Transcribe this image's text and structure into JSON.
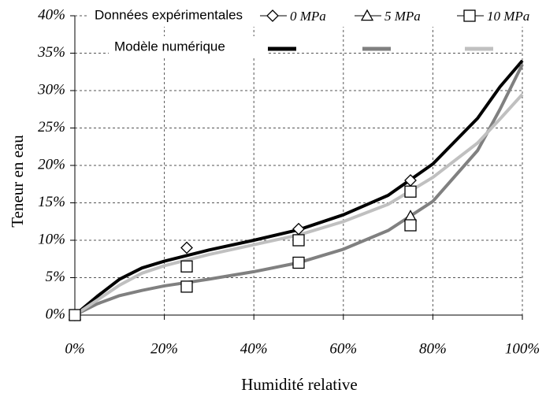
{
  "chart_data": {
    "type": "line",
    "x_label": "Humidité relative",
    "y_label": "Teneur en eau",
    "legend_titles": [
      "Données expérimentales",
      "Modèle numérique"
    ],
    "xlim": [
      0,
      100
    ],
    "xticks": [
      {
        "value": 0,
        "label": "0%"
      },
      {
        "value": 20,
        "label": "20%"
      },
      {
        "value": 40,
        "label": "40%"
      },
      {
        "value": 60,
        "label": "60%"
      },
      {
        "value": 80,
        "label": "80%"
      },
      {
        "value": 100,
        "label": "100%"
      }
    ],
    "ylim": [
      0,
      40
    ],
    "yticks": [
      {
        "value": 0,
        "label": "0%"
      },
      {
        "value": 5,
        "label": "5%"
      },
      {
        "value": 10,
        "label": "10%"
      },
      {
        "value": 15,
        "label": "15%"
      },
      {
        "value": 20,
        "label": "20%"
      },
      {
        "value": 25,
        "label": "25%"
      },
      {
        "value": 30,
        "label": "30%"
      },
      {
        "value": 35,
        "label": "35%"
      },
      {
        "value": 40,
        "label": "40%"
      }
    ],
    "grid": true,
    "series": [
      {
        "name": "0 MPa",
        "marker": "diamond",
        "x": [
          0,
          25,
          50,
          75
        ],
        "values": [
          0,
          9,
          11.5,
          18
        ]
      },
      {
        "name": "5 MPa",
        "marker": "triangle",
        "x": [
          0,
          75
        ],
        "values": [
          0,
          13.2
        ]
      },
      {
        "name": "10 MPa",
        "marker": "square",
        "x": [
          0,
          25,
          25,
          50,
          50,
          75,
          75
        ],
        "values": [
          0,
          6.5,
          3.8,
          10,
          7,
          16.5,
          12
        ]
      },
      {
        "color": "#000000",
        "x": [
          0,
          5,
          10,
          15,
          20,
          30,
          40,
          50,
          60,
          70,
          80,
          90,
          95,
          100
        ],
        "values": [
          0,
          2.5,
          4.8,
          6.3,
          7.2,
          8.7,
          10,
          11.4,
          13.4,
          16,
          20.2,
          26.3,
          30.5,
          34
        ]
      },
      {
        "color": "#808080",
        "x": [
          0,
          5,
          10,
          15,
          20,
          30,
          40,
          50,
          60,
          70,
          80,
          90,
          95,
          100
        ],
        "values": [
          0,
          1.5,
          2.6,
          3.3,
          3.9,
          4.8,
          5.8,
          7,
          8.8,
          11.3,
          15.2,
          22,
          27.5,
          33.5
        ]
      },
      {
        "color": "#c0c0c0",
        "x": [
          0,
          5,
          10,
          15,
          20,
          30,
          40,
          50,
          60,
          70,
          80,
          90,
          95,
          100
        ],
        "values": [
          0,
          2,
          4,
          5.6,
          6.6,
          8.1,
          9.4,
          10.7,
          12.5,
          14.8,
          18.4,
          23,
          26.2,
          29.5
        ]
      }
    ]
  }
}
